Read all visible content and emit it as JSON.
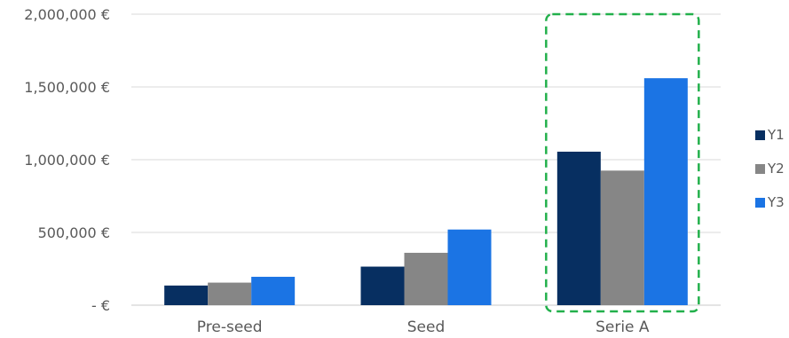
{
  "chart_data": {
    "type": "bar",
    "categories": [
      "Pre-seed",
      "Seed",
      "Serie A"
    ],
    "series": [
      {
        "name": "Y1",
        "values": [
          135000,
          265000,
          1055000
        ],
        "color": "#072f61"
      },
      {
        "name": "Y2",
        "values": [
          155000,
          360000,
          925000
        ],
        "color": "#868686"
      },
      {
        "name": "Y3",
        "values": [
          195000,
          520000,
          1560000
        ],
        "color": "#1b74e4"
      }
    ],
    "ylim": [
      0,
      2000000
    ],
    "yticks": [
      0,
      500000,
      1000000,
      1500000,
      2000000
    ],
    "ytick_labels": [
      "-   €",
      "500,000 €",
      "1,000,000 €",
      "1,500,000 €",
      "2,000,000 €"
    ],
    "grid": true,
    "legend": "right",
    "highlight": {
      "category": "Serie A",
      "style": "dashed",
      "color": "#22b04b"
    }
  }
}
